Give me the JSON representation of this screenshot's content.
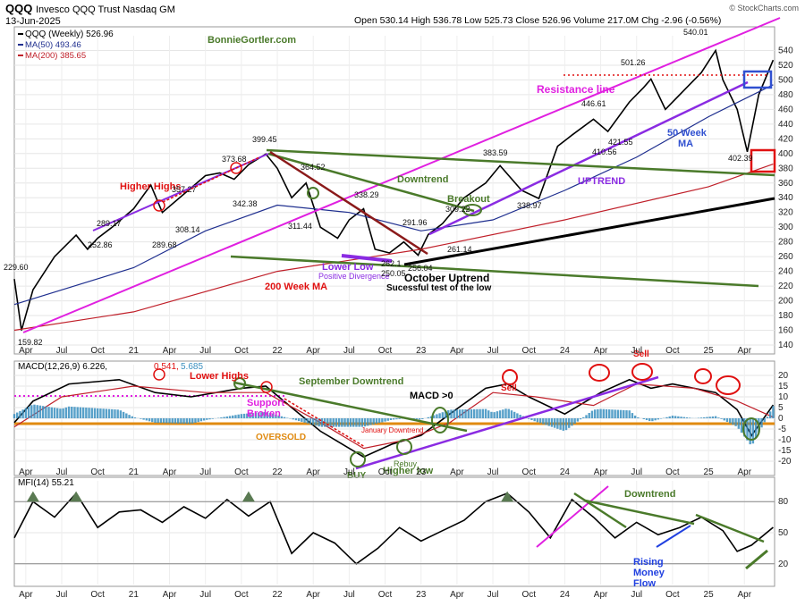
{
  "header": {
    "symbol": "QQQ",
    "name": "Invesco QQQ Trust Nasdaq GM",
    "date": "13-Jun-2025",
    "ohlc": "Open 530.14  High 536.78  Low 525.73  Close 526.96  Volume 217.0M  Chg -2.96 (-0.56%)",
    "brand": "© StockCharts.com"
  },
  "legend": {
    "price": "QQQ (Weekly) 526.96",
    "ma50": "MA(50) 493.46",
    "ma200": "MA(200) 385.65"
  },
  "colors": {
    "price": "#000000",
    "ma50": "#1f2f8f",
    "ma200": "#c0202a",
    "magenta": "#e020e0",
    "green": "#4a7a2a",
    "purple": "#8a2be2",
    "red": "#e01010",
    "blue": "#3050d0",
    "hist": "#3a8fbf",
    "orange": "#e08a10"
  },
  "price_annotations": [
    {
      "t": "BonnieGortler.com",
      "k": "green"
    },
    {
      "t": "Higher Highs",
      "k": "red"
    },
    {
      "t": "200 Week MA",
      "k": "red"
    },
    {
      "t": "Lower Low",
      "k": "purple"
    },
    {
      "t": "Positive Divergence",
      "k": "purple"
    },
    {
      "t": "October Uptrend",
      "k": "black"
    },
    {
      "t": "Sucessful test of the low",
      "k": "black"
    },
    {
      "t": "Downtrend",
      "k": "green"
    },
    {
      "t": "Breakout",
      "k": "green"
    },
    {
      "t": "UPTREND",
      "k": "purple"
    },
    {
      "t": "Resistance line",
      "k": "magenta"
    },
    {
      "t": "50 Week",
      "k": "blue"
    },
    {
      "t": "MA",
      "k": "blue"
    }
  ],
  "price_value_labels": [
    "229.60",
    "159.82",
    "289.17",
    "252.86",
    "289.68",
    "308.14",
    "357.27",
    "373.68",
    "342.38",
    "399.45",
    "311.44",
    "364.52",
    "338.29",
    "291.96",
    "309.22",
    "250.05",
    "256.04",
    "262.1",
    "261.14",
    "383.59",
    "338.97",
    "446.61",
    "410.56",
    "501.26",
    "421.55",
    "540.01",
    "402.39"
  ],
  "macd": {
    "legend": "MACD(12,26,9) 6.226,",
    "signal_value": "0.541,",
    "hist_value": "5.685",
    "annotations": [
      {
        "t": "Lower Highs",
        "k": "red"
      },
      {
        "t": "Support",
        "k": "magenta"
      },
      {
        "t": "Broken",
        "k": "magenta"
      },
      {
        "t": "OVERSOLD",
        "k": "orange"
      },
      {
        "t": "September Downtrend",
        "k": "green"
      },
      {
        "t": "January Downtrend",
        "k": "red"
      },
      {
        "t": "MACD >0",
        "k": "black"
      },
      {
        "t": "Sell",
        "k": "red"
      },
      {
        "t": "Sell",
        "k": "red"
      },
      {
        "t": "BUY",
        "k": "green"
      },
      {
        "t": "Rebuy",
        "k": "green"
      },
      {
        "t": "Higher low",
        "k": "green"
      }
    ]
  },
  "mfi": {
    "legend": "MFI(14) 55.21",
    "annotations": [
      {
        "t": "Downtrend",
        "k": "green"
      },
      {
        "t": "Rising",
        "k": "blue"
      },
      {
        "t": "Money",
        "k": "blue"
      },
      {
        "t": "Flow",
        "k": "blue"
      }
    ]
  },
  "chart_data": [
    {
      "type": "line",
      "title": "QQQ (Weekly)",
      "x_range": [
        "2020-03",
        "2025-06"
      ],
      "ylim": [
        140,
        560
      ],
      "y_ticks": [
        140,
        160,
        180,
        200,
        220,
        240,
        260,
        280,
        300,
        320,
        340,
        360,
        380,
        400,
        420,
        440,
        460,
        480,
        500,
        520,
        540
      ],
      "x_ticks": [
        "Apr",
        "Jul",
        "Oct",
        "21",
        "Apr",
        "Jul",
        "Oct",
        "22",
        "Apr",
        "Jul",
        "Oct",
        "23",
        "Apr",
        "Jul",
        "Oct",
        "24",
        "Apr",
        "Jul",
        "Oct",
        "25",
        "Apr"
      ],
      "series": [
        {
          "name": "QQQ (Weekly)",
          "x": [
            2020.17,
            2020.22,
            2020.3,
            2020.45,
            2020.6,
            2020.68,
            2020.75,
            2020.85,
            2021.0,
            2021.12,
            2021.2,
            2021.35,
            2021.5,
            2021.6,
            2021.7,
            2021.8,
            2021.92,
            2022.0,
            2022.1,
            2022.2,
            2022.3,
            2022.42,
            2022.5,
            2022.6,
            2022.68,
            2022.78,
            2022.88,
            2022.98,
            2023.05,
            2023.15,
            2023.3,
            2023.45,
            2023.55,
            2023.7,
            2023.82,
            2023.95,
            2024.05,
            2024.2,
            2024.3,
            2024.45,
            2024.55,
            2024.6,
            2024.7,
            2024.85,
            2024.95,
            2025.05,
            2025.1,
            2025.2,
            2025.27,
            2025.35,
            2025.45
          ],
          "values": [
            229.6,
            159.82,
            215,
            260,
            289.17,
            270,
            285,
            300,
            325,
            357.27,
            320,
            345,
            370,
            373.68,
            365,
            385,
            399.45,
            380,
            340,
            360,
            300,
            285,
            310,
            325,
            270,
            265,
            280,
            262,
            290,
            305,
            340,
            360,
            383.59,
            350,
            338.97,
            410,
            425,
            446.61,
            430,
            470,
            490,
            501.26,
            460,
            490,
            510,
            540.01,
            500,
            460,
            402.39,
            480,
            526.96
          ]
        },
        {
          "name": "MA(50)",
          "x": [
            2020.17,
            2021.0,
            2021.5,
            2022.0,
            2022.5,
            2023.0,
            2023.5,
            2024.0,
            2024.5,
            2025.0,
            2025.45
          ],
          "values": [
            195,
            245,
            295,
            330,
            320,
            295,
            310,
            350,
            395,
            450,
            493.46
          ]
        },
        {
          "name": "MA(200)",
          "x": [
            2020.17,
            2021.0,
            2022.0,
            2023.0,
            2024.0,
            2025.0,
            2025.45
          ],
          "values": [
            160,
            185,
            240,
            270,
            310,
            355,
            385.65
          ]
        }
      ]
    },
    {
      "type": "bar",
      "title": "MACD(12,26,9)",
      "ylim": [
        -25,
        25
      ],
      "y_ticks": [
        -20,
        -15,
        -10,
        -5,
        0,
        5,
        10,
        15,
        20
      ],
      "series": [
        {
          "name": "MACD",
          "x": [
            2020.17,
            2020.3,
            2020.55,
            2020.9,
            2021.15,
            2021.4,
            2021.75,
            2021.92,
            2022.1,
            2022.3,
            2022.45,
            2022.6,
            2022.8,
            2023.0,
            2023.2,
            2023.45,
            2023.6,
            2023.75,
            2024.0,
            2024.25,
            2024.45,
            2024.6,
            2024.75,
            2024.9,
            2025.05,
            2025.2,
            2025.3,
            2025.45
          ],
          "values": [
            -2,
            8,
            16,
            18,
            12,
            10,
            14,
            15,
            5,
            -6,
            -12,
            -18,
            -12,
            -8,
            2,
            14,
            16,
            10,
            2,
            12,
            18,
            14,
            16,
            14,
            12,
            4,
            -8,
            6.226
          ]
        },
        {
          "name": "signal",
          "x": [
            2020.17,
            2020.5,
            2021.0,
            2021.5,
            2021.92,
            2022.3,
            2022.6,
            2022.9,
            2023.2,
            2023.5,
            2023.8,
            2024.2,
            2024.5,
            2024.9,
            2025.2,
            2025.45
          ],
          "values": [
            -4,
            10,
            15,
            12,
            12,
            -2,
            -14,
            -10,
            -2,
            12,
            10,
            6,
            16,
            14,
            8,
            0.541
          ]
        }
      ]
    },
    {
      "type": "line",
      "title": "MFI(14)",
      "ylim": [
        0,
        100
      ],
      "y_ticks": [
        20,
        50,
        80
      ],
      "series": [
        {
          "name": "MFI(14)",
          "x": [
            2020.17,
            2020.3,
            2020.45,
            2020.6,
            2020.75,
            2020.9,
            2021.05,
            2021.2,
            2021.35,
            2021.5,
            2021.65,
            2021.8,
            2021.95,
            2022.1,
            2022.25,
            2022.4,
            2022.55,
            2022.7,
            2022.85,
            2023.0,
            2023.15,
            2023.3,
            2023.45,
            2023.6,
            2023.75,
            2023.9,
            2024.05,
            2024.2,
            2024.35,
            2024.5,
            2024.65,
            2024.8,
            2024.95,
            2025.1,
            2025.2,
            2025.3,
            2025.45
          ],
          "values": [
            45,
            80,
            65,
            88,
            55,
            70,
            72,
            60,
            75,
            64,
            82,
            66,
            80,
            30,
            50,
            40,
            20,
            35,
            55,
            42,
            52,
            62,
            80,
            88,
            70,
            45,
            82,
            65,
            45,
            60,
            48,
            55,
            65,
            52,
            32,
            38,
            55.21
          ]
        }
      ]
    }
  ]
}
